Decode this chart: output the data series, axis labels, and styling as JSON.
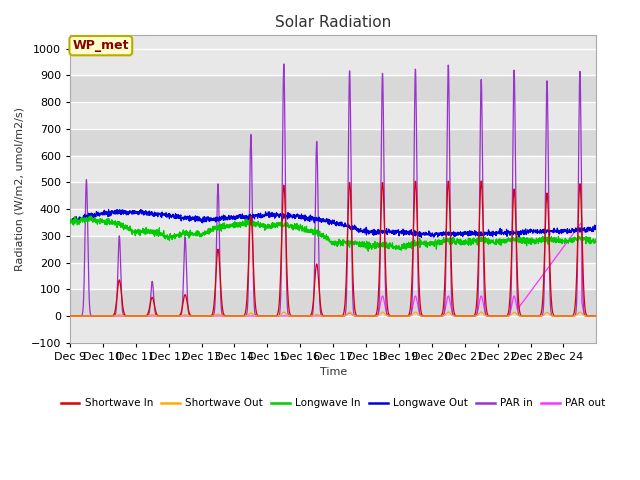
{
  "title": "Solar Radiation",
  "ylabel": "Radiation (W/m2, umol/m2/s)",
  "xlabel": "Time",
  "xlim": [
    0,
    16
  ],
  "ylim": [
    -100,
    1050
  ],
  "yticks": [
    -100,
    0,
    100,
    200,
    300,
    400,
    500,
    600,
    700,
    800,
    900,
    1000
  ],
  "xtick_labels": [
    "Dec 9",
    "Dec 10",
    "Dec 11",
    "Dec 12",
    "Dec 13",
    "Dec 14",
    "Dec 15",
    "Dec 16",
    "Dec 17",
    "Dec 18",
    "Dec 19",
    "Dec 20",
    "Dec 21",
    "Dec 22",
    "Dec 23",
    "Dec 24"
  ],
  "annotation_text": "WP_met",
  "colors": {
    "shortwave_in": "#dd0000",
    "shortwave_out": "#ffaa00",
    "longwave_in": "#00cc00",
    "longwave_out": "#0000dd",
    "par_in": "#9933cc",
    "par_out": "#ff33ff"
  },
  "plot_bg": "#e8e8e8",
  "fig_bg": "#ffffff",
  "grid_color": "#ffffff",
  "stripe_light": "#eeeeee",
  "stripe_dark": "#dddddd"
}
